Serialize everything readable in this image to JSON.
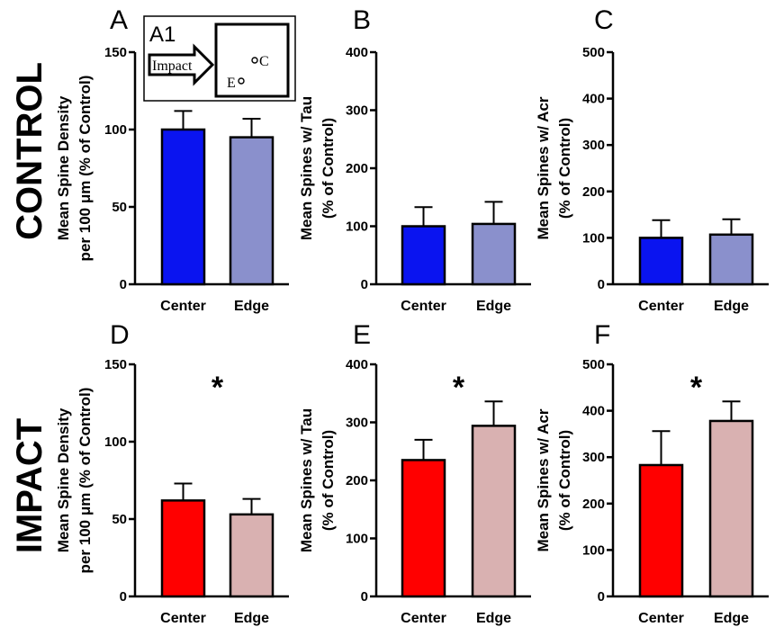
{
  "row_labels": [
    "CONTROL",
    "IMPACT"
  ],
  "inset": {
    "label": "A1",
    "arrow_text": "Impact",
    "point_c": "C",
    "point_e": "E"
  },
  "chart_data": [
    {
      "panel": "A",
      "type": "bar",
      "row": "CONTROL",
      "categories": [
        "Center",
        "Edge"
      ],
      "values": [
        100,
        95
      ],
      "errors": [
        12,
        12
      ],
      "colors": [
        "#0a14f0",
        "#8a90cc"
      ],
      "ylabel": [
        "Mean  Spine  Density",
        "per 100 μm (% of Control)"
      ],
      "ylim": [
        0,
        150
      ],
      "yticks": [
        0,
        50,
        100,
        150
      ],
      "significance": ""
    },
    {
      "panel": "B",
      "type": "bar",
      "row": "CONTROL",
      "categories": [
        "Center",
        "Edge"
      ],
      "values": [
        100,
        104
      ],
      "errors": [
        33,
        38
      ],
      "colors": [
        "#0a14f0",
        "#8a90cc"
      ],
      "ylabel": [
        "Mean Spines w/ Tau",
        "(% of Control)"
      ],
      "ylim": [
        0,
        400
      ],
      "yticks": [
        0,
        100,
        200,
        300,
        400
      ],
      "significance": ""
    },
    {
      "panel": "C",
      "type": "bar",
      "row": "CONTROL",
      "categories": [
        "Center",
        "Edge"
      ],
      "values": [
        100,
        107
      ],
      "errors": [
        38,
        33
      ],
      "colors": [
        "#0a14f0",
        "#8a90cc"
      ],
      "ylabel": [
        "Mean Spines w/ Acr",
        "(% of Control)"
      ],
      "ylim": [
        0,
        500
      ],
      "yticks": [
        0,
        100,
        200,
        300,
        400,
        500
      ],
      "significance": ""
    },
    {
      "panel": "D",
      "type": "bar",
      "row": "IMPACT",
      "categories": [
        "Center",
        "Edge"
      ],
      "values": [
        62,
        53
      ],
      "errors": [
        11,
        10
      ],
      "colors": [
        "#ff0000",
        "#d9b1b1"
      ],
      "ylabel": [
        "Mean  Spine  Density",
        "per 100 μm (% of Control)"
      ],
      "ylim": [
        0,
        150
      ],
      "yticks": [
        0,
        50,
        100,
        150
      ],
      "significance": "*"
    },
    {
      "panel": "E",
      "type": "bar",
      "row": "IMPACT",
      "categories": [
        "Center",
        "Edge"
      ],
      "values": [
        235,
        294
      ],
      "errors": [
        35,
        42
      ],
      "colors": [
        "#ff0000",
        "#d9b1b1"
      ],
      "ylabel": [
        "Mean Spines w/ Tau",
        "(% of Control)"
      ],
      "ylim": [
        0,
        400
      ],
      "yticks": [
        0,
        100,
        200,
        300,
        400
      ],
      "significance": "*"
    },
    {
      "panel": "F",
      "type": "bar",
      "row": "IMPACT",
      "categories": [
        "Center",
        "Edge"
      ],
      "values": [
        283,
        378
      ],
      "errors": [
        73,
        42
      ],
      "colors": [
        "#ff0000",
        "#d9b1b1"
      ],
      "ylabel": [
        "Mean Spines w/ Acr",
        "(% of Control)"
      ],
      "ylim": [
        0,
        500
      ],
      "yticks": [
        0,
        100,
        200,
        300,
        400,
        500
      ],
      "significance": "*"
    }
  ]
}
